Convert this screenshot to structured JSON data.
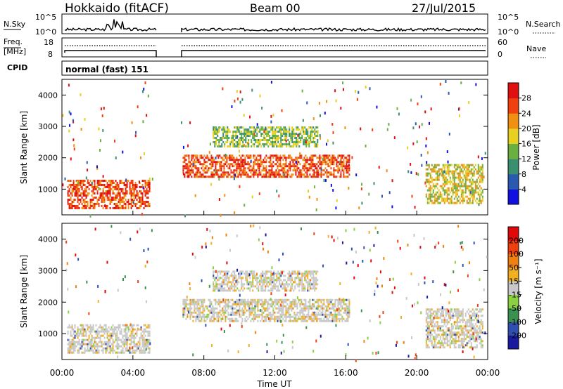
{
  "header": {
    "left_title": "Hokkaido (fitACF)",
    "center_title": "Beam 00",
    "date": "27/Jul/2015"
  },
  "panel_sky": {
    "label_left": "N.Sky",
    "label_right": "N.Search",
    "left_ticks": [
      "10^5",
      "10^0"
    ],
    "right_ticks": [
      "10^5",
      "10^0"
    ]
  },
  "panel_freq": {
    "label_left_1": "Freq.",
    "label_left_2": "[MHz]",
    "label_right": "Nave",
    "left_ticks": [
      "18",
      "8"
    ],
    "right_ticks": [
      "60",
      "0"
    ]
  },
  "panel_cpid": {
    "label": "CPID",
    "text": "normal (fast) 151"
  },
  "chart_data": [
    {
      "type": "heatmap",
      "title": "",
      "xlabel": "Time UT",
      "ylabel": "Slant Range [km]",
      "x_ticks": [
        "00:00",
        "04:00",
        "08:00",
        "12:00",
        "16:00",
        "20:00",
        "00:00"
      ],
      "y_ticks": [
        1000,
        2000,
        3000,
        4000
      ],
      "colorbar_label": "Power [dB]",
      "colorbar_ticks": [
        4,
        8,
        12,
        16,
        20,
        24,
        28
      ],
      "colorbar_colors": [
        "#1010e0",
        "#2a5ab0",
        "#3a8f70",
        "#6ab040",
        "#e8d020",
        "#f09010",
        "#f04010",
        "#e01010"
      ],
      "regions": [
        {
          "t_start": 0.3,
          "t_end": 5.0,
          "r_start": 300,
          "r_end": 1300,
          "level": 28
        },
        {
          "t_start": 6.8,
          "t_end": 16.3,
          "r_start": 1300,
          "r_end": 2100,
          "level": 26
        },
        {
          "t_start": 8.5,
          "t_end": 14.5,
          "r_start": 2300,
          "r_end": 3000,
          "level": 18
        },
        {
          "t_start": 20.5,
          "t_end": 23.8,
          "r_start": 500,
          "r_end": 1800,
          "level": 22
        }
      ]
    },
    {
      "type": "heatmap",
      "title": "",
      "xlabel": "Time UT",
      "ylabel": "Slant Range [km]",
      "x_ticks": [
        "00:00",
        "04:00",
        "08:00",
        "12:00",
        "16:00",
        "20:00",
        "00:00"
      ],
      "y_ticks": [
        1000,
        2000,
        3000,
        4000
      ],
      "colorbar_label": "Velocity [m s⁻¹]",
      "colorbar_ticks": [
        200,
        100,
        50,
        15,
        -15,
        -50,
        -100,
        -200
      ],
      "colorbar_colors": [
        "#1a1aa0",
        "#3050b0",
        "#3a9050",
        "#8ad040",
        "#c8c8c8",
        "#f0b020",
        "#f08010",
        "#f04010",
        "#e00808"
      ],
      "regions": [
        {
          "t_start": 0.3,
          "t_end": 5.0,
          "r_start": 300,
          "r_end": 1300,
          "level": 0
        },
        {
          "t_start": 6.8,
          "t_end": 16.3,
          "r_start": 1300,
          "r_end": 2100,
          "level": 0
        },
        {
          "t_start": 8.5,
          "t_end": 14.5,
          "r_start": 2300,
          "r_end": 3000,
          "level": 0
        },
        {
          "t_start": 20.5,
          "t_end": 23.8,
          "r_start": 500,
          "r_end": 1800,
          "level": 0
        }
      ]
    }
  ]
}
